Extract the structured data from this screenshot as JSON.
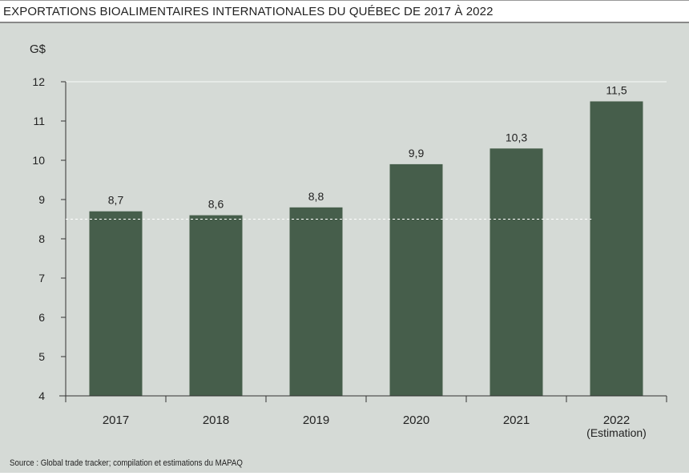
{
  "chart_data": {
    "type": "bar",
    "title": "EXPORTATIONS BIOALIMENTAIRES INTERNATIONALES DU QUÉBEC DE 2017 À 2022",
    "ylabel": "G$",
    "xlabel": "",
    "categories": [
      "2017",
      "2018",
      "2019",
      "2020",
      "2021",
      "2022"
    ],
    "category_sublabels": [
      "",
      "",
      "",
      "",
      "",
      "(Estimation)"
    ],
    "values": [
      8.7,
      8.6,
      8.8,
      9.9,
      10.3,
      11.5
    ],
    "data_labels": [
      "8,7",
      "8,6",
      "8,8",
      "9,9",
      "10,3",
      "11,5"
    ],
    "ylim": [
      4,
      12
    ],
    "yticks": [
      4,
      5,
      6,
      7,
      8,
      9,
      10,
      11,
      12
    ],
    "reference_line": 8.5,
    "grid": false,
    "colors": {
      "bar": "#465e4b",
      "background": "#d5dad6",
      "reference_line": "#ffffff"
    },
    "source": "Source : Global trade tracker; compilation et estimations du MAPAQ"
  }
}
